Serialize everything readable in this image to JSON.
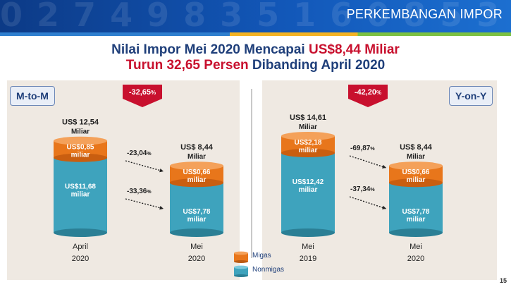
{
  "header": {
    "title": "PERKEMBANGAN IMPOR"
  },
  "headline": {
    "line1_prefix": "Nilai Impor Mei 2020 Mencapai ",
    "line1_highlight": "US$8,44 Miliar",
    "line2_highlight": "Turun 32,65 Persen",
    "line2_suffix": " Dibanding April 2020"
  },
  "panels": {
    "left_tag": "M-to-M",
    "right_tag": "Y-on-Y"
  },
  "badges": {
    "mtm": "-32,65",
    "yoy": "-42,20"
  },
  "legend": {
    "migas": "Migas",
    "nonmigas": "Nonmigas"
  },
  "page_number": "15",
  "colors": {
    "migas": "#e8761b",
    "nonmigas": "#3ea3bd",
    "badge": "#c8102e",
    "text_dark": "#1f3f7a"
  },
  "chart_data": {
    "type": "bar",
    "stacked": true,
    "unit": "US$ miliar",
    "categories": [
      "April 2020",
      "Mei 2020",
      "Mei 2019",
      "Mei 2020"
    ],
    "series": [
      {
        "name": "Migas",
        "values": [
          0.85,
          0.66,
          2.18,
          0.66
        ]
      },
      {
        "name": "Nonmigas",
        "values": [
          11.68,
          7.78,
          12.42,
          7.78
        ]
      }
    ],
    "bars": [
      {
        "month": "April",
        "year": "2020",
        "total_label": "US$ 12,54",
        "total_unit": "Miliar",
        "migas_label": "US$0,85",
        "migas_unit": "miliar",
        "nonmigas_label": "US$11,68",
        "nonmigas_unit": "miliar",
        "total": 12.54,
        "migas": 0.85,
        "nonmigas": 11.68
      },
      {
        "month": "Mei",
        "year": "2020",
        "total_label": "US$ 8,44",
        "total_unit": "Miliar",
        "migas_label": "US$0,66",
        "migas_unit": "miliar",
        "nonmigas_label": "US$7,78",
        "nonmigas_unit": "miliar",
        "total": 8.44,
        "migas": 0.66,
        "nonmigas": 7.78
      },
      {
        "month": "Mei",
        "year": "2019",
        "total_label": "US$ 14,61",
        "total_unit": "Miliar",
        "migas_label": "US$2,18",
        "migas_unit": "miliar",
        "nonmigas_label": "US$12,42",
        "nonmigas_unit": "miliar",
        "total": 14.61,
        "migas": 2.18,
        "nonmigas": 12.42
      },
      {
        "month": "Mei",
        "year": "2020",
        "total_label": "US$ 8,44",
        "total_unit": "Miliar",
        "migas_label": "US$0,66",
        "migas_unit": "miliar",
        "nonmigas_label": "US$7,78",
        "nonmigas_unit": "miliar",
        "total": 8.44,
        "migas": 0.66,
        "nonmigas": 7.78
      }
    ],
    "changes": [
      {
        "panel": "M-to-M",
        "series": "Migas",
        "value": "-23,04",
        "unit": "%"
      },
      {
        "panel": "M-to-M",
        "series": "Nonmigas",
        "value": "-33,36",
        "unit": "%"
      },
      {
        "panel": "Y-on-Y",
        "series": "Migas",
        "value": "-69,87",
        "unit": "%"
      },
      {
        "panel": "Y-on-Y",
        "series": "Nonmigas",
        "value": "-37,34",
        "unit": "%"
      }
    ]
  }
}
